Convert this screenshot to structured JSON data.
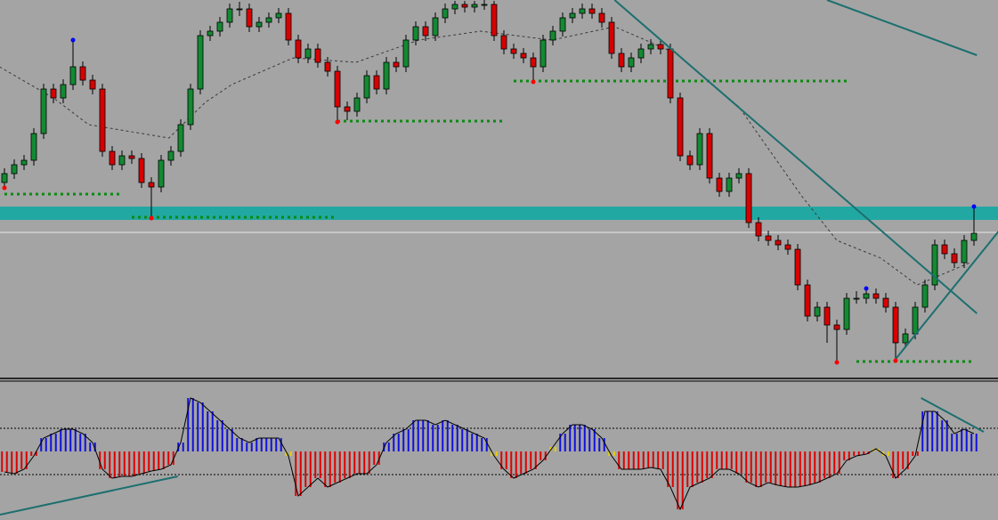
{
  "chart_data": [
    {
      "type": "candlestick",
      "open": [
        220,
        230,
        240,
        245,
        275,
        325,
        315,
        330,
        350,
        335,
        325,
        255,
        240,
        250,
        247,
        220,
        215,
        245,
        255,
        285,
        325,
        385,
        390,
        400,
        415,
        415,
        395,
        400,
        405,
        410,
        380,
        360,
        370,
        355,
        345,
        305,
        300,
        315,
        340,
        325,
        355,
        350,
        380,
        395,
        385,
        405,
        415,
        420,
        417,
        420,
        420,
        385,
        370,
        365,
        360,
        350,
        380,
        390,
        405,
        410,
        415,
        410,
        400,
        365,
        350,
        360,
        370,
        375,
        370,
        315,
        250,
        240,
        275,
        225,
        210,
        225,
        230,
        175,
        160,
        155,
        150,
        145,
        105,
        70,
        80,
        60,
        55,
        90,
        90,
        95,
        90,
        80,
        40,
        50,
        80,
        105,
        150,
        140,
        130,
        155
      ],
      "high": [
        236,
        246,
        251,
        281,
        331,
        331,
        336,
        380,
        356,
        341,
        331,
        261,
        256,
        256,
        253,
        226,
        251,
        261,
        291,
        331,
        391,
        396,
        406,
        421,
        423,
        421,
        406,
        411,
        416,
        416,
        386,
        376,
        376,
        361,
        351,
        311,
        321,
        346,
        346,
        361,
        361,
        386,
        401,
        401,
        411,
        421,
        424,
        424,
        424,
        425,
        424,
        391,
        376,
        371,
        366,
        386,
        396,
        411,
        416,
        421,
        421,
        416,
        406,
        371,
        366,
        376,
        381,
        381,
        376,
        321,
        256,
        281,
        281,
        231,
        231,
        236,
        236,
        181,
        166,
        161,
        156,
        151,
        111,
        86,
        86,
        66,
        96,
        98,
        101,
        101,
        96,
        86,
        56,
        86,
        111,
        156,
        156,
        146,
        161,
        193
      ],
      "low": [
        214,
        224,
        234,
        239,
        269,
        309,
        309,
        324,
        329,
        319,
        249,
        234,
        234,
        241,
        214,
        180,
        209,
        239,
        249,
        279,
        319,
        379,
        384,
        394,
        407,
        389,
        389,
        394,
        399,
        374,
        354,
        354,
        349,
        339,
        288,
        290,
        294,
        309,
        319,
        319,
        344,
        344,
        374,
        379,
        379,
        399,
        409,
        411,
        411,
        414,
        379,
        364,
        359,
        354,
        333,
        344,
        374,
        384,
        399,
        404,
        404,
        394,
        359,
        344,
        344,
        354,
        364,
        364,
        309,
        244,
        234,
        234,
        219,
        204,
        204,
        219,
        169,
        154,
        149,
        144,
        139,
        99,
        64,
        64,
        40,
        18,
        49,
        84,
        84,
        84,
        74,
        20,
        34,
        44,
        74,
        99,
        134,
        124,
        124,
        149
      ],
      "close": [
        230,
        240,
        245,
        275,
        325,
        315,
        330,
        350,
        335,
        325,
        255,
        240,
        250,
        247,
        220,
        215,
        245,
        255,
        285,
        325,
        385,
        390,
        400,
        415,
        415,
        395,
        400,
        405,
        410,
        380,
        360,
        370,
        355,
        345,
        305,
        300,
        315,
        340,
        325,
        355,
        350,
        380,
        395,
        385,
        405,
        415,
        420,
        417,
        420,
        420,
        385,
        370,
        365,
        360,
        350,
        380,
        390,
        405,
        410,
        415,
        410,
        400,
        365,
        350,
        360,
        370,
        375,
        370,
        315,
        250,
        240,
        275,
        225,
        210,
        225,
        230,
        175,
        160,
        155,
        150,
        145,
        105,
        70,
        80,
        60,
        55,
        90,
        90,
        95,
        90,
        80,
        40,
        50,
        80,
        105,
        150,
        140,
        130,
        155,
        163
      ],
      "ylim": [
        0,
        425
      ],
      "colors": {
        "up": "#138a32",
        "down": "#d80000"
      },
      "ma": {
        "points": [
          [
            -0.5,
            350
          ],
          [
            5,
            315
          ],
          [
            8.6,
            285
          ],
          [
            16.8,
            270
          ],
          [
            20.5,
            310
          ],
          [
            23.2,
            330
          ],
          [
            29.5,
            360
          ],
          [
            35.9,
            355
          ],
          [
            42.3,
            380
          ],
          [
            48.6,
            390
          ],
          [
            55.9,
            380
          ],
          [
            62.3,
            395
          ],
          [
            68.6,
            365
          ],
          [
            75,
            305
          ],
          [
            81.4,
            205
          ],
          [
            85,
            155
          ],
          [
            89.5,
            135
          ],
          [
            93.2,
            105
          ],
          [
            98.6,
            130
          ]
        ],
        "color": "#3a3a3a"
      },
      "levels": [
        {
          "from": 0,
          "to": 12,
          "value": 207
        },
        {
          "from": 13,
          "to": 34,
          "value": 181
        },
        {
          "from": 34,
          "to": 51,
          "value": 289
        },
        {
          "from": 52,
          "to": 86,
          "value": 334
        },
        {
          "from": 87,
          "to": 99,
          "value": 19
        }
      ],
      "level_color": "#0b8a12",
      "zone": [
        178,
        193
      ],
      "zone_color": "#22a8a2",
      "line_level": 164,
      "trendlines": [
        [
          [
            62.3,
            425
          ],
          [
            99.3,
            73
          ]
        ],
        [
          [
            90.8,
            19
          ],
          [
            101.5,
            165
          ]
        ],
        [
          [
            84,
            425
          ],
          [
            99.3,
            363
          ]
        ]
      ],
      "trend_color": "#1d6f6f",
      "swing_highs": [
        7,
        88,
        99
      ],
      "swing_lows": [
        0,
        15,
        34,
        54,
        85,
        91
      ]
    },
    {
      "type": "histogram",
      "values": [
        -23,
        -25,
        -20,
        -5,
        15,
        20,
        25,
        25,
        20,
        10,
        -20,
        -30,
        -28,
        -28,
        -25,
        -22,
        -20,
        -15,
        10,
        60,
        55,
        45,
        35,
        25,
        15,
        10,
        15,
        15,
        15,
        -5,
        -50,
        -40,
        -30,
        -40,
        -35,
        -30,
        -25,
        -25,
        -15,
        10,
        20,
        25,
        35,
        35,
        30,
        35,
        30,
        25,
        20,
        15,
        -5,
        -20,
        -30,
        -25,
        -20,
        -10,
        5,
        20,
        30,
        30,
        25,
        15,
        -5,
        -20,
        -20,
        -20,
        -18,
        -20,
        -40,
        -65,
        -40,
        -35,
        -30,
        -20,
        -20,
        -25,
        -35,
        -40,
        -35,
        -38,
        -40,
        -40,
        -38,
        -35,
        -30,
        -25,
        -10,
        -5,
        -3,
        3,
        -5,
        -30,
        -20,
        -5,
        45,
        45,
        35,
        20,
        25,
        20
      ],
      "ylim": [
        -77,
        77
      ],
      "levels": [
        26,
        -26
      ],
      "colors": {
        "up": "#1010e0",
        "down": "#e00000",
        "turn": "#e8d000"
      },
      "trendlines": [
        [
          [
            -0.45,
            -71
          ],
          [
            17.7,
            -28
          ]
        ],
        [
          [
            93.6,
            60
          ],
          [
            100,
            22
          ]
        ]
      ],
      "trend_color": "#1d6f6f"
    }
  ]
}
